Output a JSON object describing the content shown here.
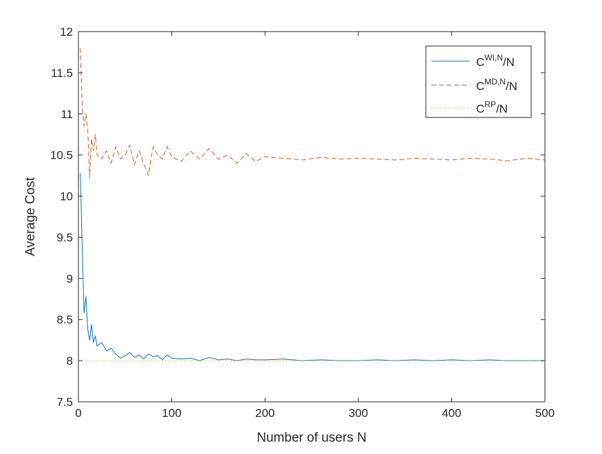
{
  "colors": {
    "background": "#ffffff",
    "axes": "#262626",
    "series_wi": "#0072BD",
    "series_md": "#D95319",
    "series_rp": "#EDB120"
  },
  "chart_data": {
    "type": "line",
    "title": "",
    "xlabel": "Number of users N",
    "ylabel": "Average Cost",
    "xlim": [
      0,
      500
    ],
    "ylim": [
      7.5,
      12
    ],
    "xticks": [
      0,
      100,
      200,
      300,
      400,
      500
    ],
    "xtick_labels": [
      "0",
      "100",
      "200",
      "300",
      "400",
      "500"
    ],
    "yticks": [
      7.5,
      8,
      8.5,
      9,
      9.5,
      10,
      10.5,
      11,
      11.5,
      12
    ],
    "ytick_labels": [
      "7.5",
      "8",
      "8.5",
      "9",
      "9.5",
      "10",
      "10.5",
      "11",
      "11.5",
      "12"
    ],
    "grid": false,
    "legend_position": "top-right",
    "series": [
      {
        "name": "C^{WI,N}/N",
        "legend_base": "C",
        "legend_sup": "WI,N",
        "legend_tail": "/N",
        "line_style": "solid",
        "x": [
          2,
          4,
          6,
          8,
          10,
          12,
          14,
          16,
          18,
          20,
          25,
          30,
          35,
          40,
          45,
          50,
          55,
          60,
          65,
          70,
          75,
          80,
          85,
          90,
          95,
          100,
          110,
          120,
          130,
          140,
          150,
          160,
          170,
          180,
          190,
          200,
          220,
          240,
          260,
          280,
          300,
          320,
          340,
          360,
          380,
          400,
          420,
          440,
          460,
          480,
          500
        ],
        "y": [
          10.28,
          9.4,
          8.58,
          8.78,
          8.38,
          8.25,
          8.44,
          8.22,
          8.3,
          8.18,
          8.22,
          8.12,
          8.15,
          8.08,
          8.03,
          8.06,
          8.1,
          8.04,
          8.07,
          8.02,
          8.08,
          8.05,
          8.06,
          8.01,
          8.07,
          8.03,
          8.02,
          8.03,
          8.0,
          8.04,
          8.01,
          8.02,
          8.0,
          8.02,
          8.01,
          8.01,
          8.02,
          8.0,
          8.01,
          8.0,
          8.0,
          8.01,
          8.0,
          8.01,
          8.0,
          8.01,
          8.0,
          8.01,
          8.0,
          8.0,
          8.0
        ]
      },
      {
        "name": "C^{MD,N}/N",
        "legend_base": "C",
        "legend_sup": "MD,N",
        "legend_tail": "/N",
        "line_style": "dashed",
        "x": [
          2,
          4,
          6,
          8,
          10,
          12,
          14,
          16,
          18,
          20,
          25,
          30,
          35,
          40,
          45,
          50,
          55,
          60,
          65,
          70,
          75,
          80,
          85,
          90,
          95,
          100,
          110,
          120,
          130,
          140,
          150,
          160,
          170,
          180,
          190,
          200,
          220,
          240,
          260,
          280,
          300,
          320,
          340,
          360,
          380,
          400,
          420,
          440,
          460,
          480,
          500
        ],
        "y": [
          11.8,
          11.1,
          10.85,
          11.0,
          10.8,
          10.22,
          10.7,
          10.55,
          10.75,
          10.5,
          10.45,
          10.55,
          10.4,
          10.6,
          10.45,
          10.5,
          10.62,
          10.38,
          10.55,
          10.4,
          10.25,
          10.6,
          10.5,
          10.45,
          10.6,
          10.48,
          10.42,
          10.55,
          10.45,
          10.58,
          10.45,
          10.5,
          10.4,
          10.52,
          10.42,
          10.48,
          10.46,
          10.44,
          10.47,
          10.45,
          10.46,
          10.45,
          10.44,
          10.46,
          10.45,
          10.44,
          10.46,
          10.45,
          10.43,
          10.46,
          10.44
        ]
      },
      {
        "name": "C^{RP}/N",
        "legend_base": "C",
        "legend_sup": "RP",
        "legend_tail": "/N",
        "line_style": "dotted",
        "x": [
          1,
          500
        ],
        "y": [
          8.0,
          8.0
        ]
      }
    ]
  }
}
